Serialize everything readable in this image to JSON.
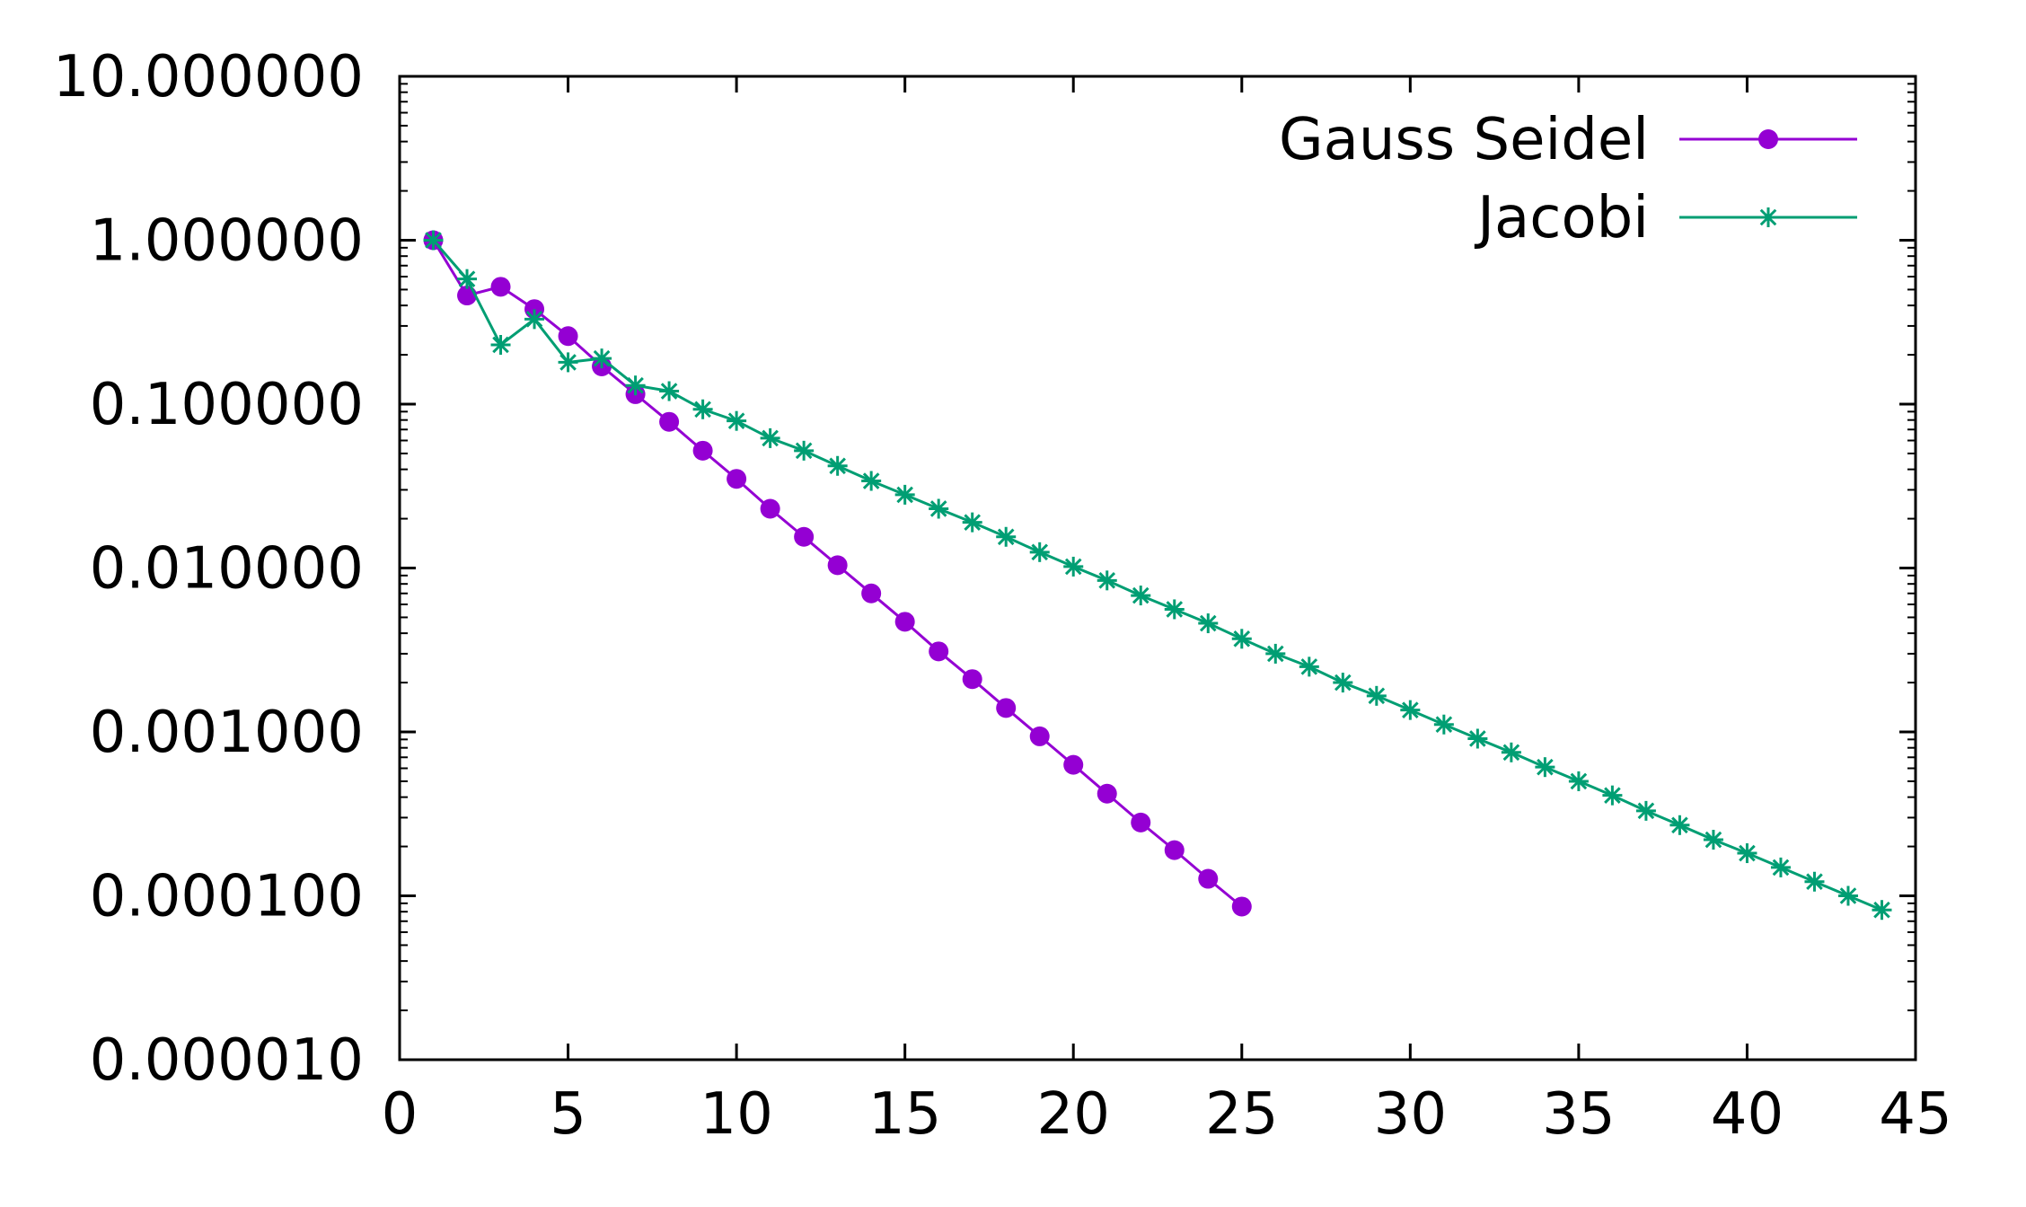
{
  "chart_data": {
    "type": "line",
    "title": "",
    "xlabel": "",
    "ylabel": "",
    "xlim": [
      0,
      45
    ],
    "ylim": [
      1e-05,
      10
    ],
    "yscale": "log",
    "x_ticks": [
      0,
      5,
      10,
      15,
      20,
      25,
      30,
      35,
      40,
      45
    ],
    "x_tick_labels": [
      "0",
      "5",
      "10",
      "15",
      "20",
      "25",
      "30",
      "35",
      "40",
      "45"
    ],
    "y_ticks": [
      10,
      1,
      0.1,
      0.01,
      0.001,
      0.0001,
      1e-05
    ],
    "y_tick_labels": [
      "10.000000",
      "1.000000",
      "0.100000",
      "0.010000",
      "0.001000",
      "0.000100",
      "0.000010"
    ],
    "grid": false,
    "legend_position": "top-right",
    "series": [
      {
        "name": "Gauss Seidel",
        "color": "#9400d3",
        "marker": "circle",
        "x": [
          1,
          2,
          3,
          4,
          5,
          6,
          7,
          8,
          9,
          10,
          11,
          12,
          13,
          14,
          15,
          16,
          17,
          18,
          19,
          20,
          21,
          22,
          23,
          24,
          25
        ],
        "values": [
          1.0,
          0.46,
          0.52,
          0.38,
          0.26,
          0.17,
          0.115,
          0.078,
          0.052,
          0.035,
          0.023,
          0.0155,
          0.0104,
          0.007,
          0.0047,
          0.0031,
          0.0021,
          0.0014,
          0.00094,
          0.00063,
          0.00042,
          0.00028,
          0.00019,
          0.000127,
          8.6e-05
        ]
      },
      {
        "name": "Jacobi",
        "color": "#009e73",
        "marker": "star",
        "x": [
          1,
          2,
          3,
          4,
          5,
          6,
          7,
          8,
          9,
          10,
          11,
          12,
          13,
          14,
          15,
          16,
          17,
          18,
          19,
          20,
          21,
          22,
          23,
          24,
          25,
          26,
          27,
          28,
          29,
          30,
          31,
          32,
          33,
          34,
          35,
          36,
          37,
          38,
          39,
          40,
          41,
          42,
          43,
          44
        ],
        "values": [
          1.0,
          0.58,
          0.23,
          0.33,
          0.18,
          0.19,
          0.13,
          0.12,
          0.093,
          0.079,
          0.062,
          0.052,
          0.042,
          0.034,
          0.028,
          0.023,
          0.019,
          0.0155,
          0.0125,
          0.0102,
          0.0084,
          0.0068,
          0.0056,
          0.0046,
          0.0037,
          0.003,
          0.0025,
          0.002,
          0.00166,
          0.00136,
          0.00111,
          0.00091,
          0.00075,
          0.00061,
          0.0005,
          0.00041,
          0.00033,
          0.00027,
          0.00022,
          0.000182,
          0.000149,
          0.000122,
          0.0001,
          8.2e-05
        ]
      }
    ]
  }
}
